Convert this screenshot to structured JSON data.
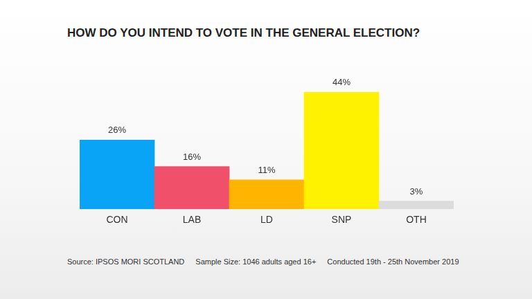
{
  "chart_data": {
    "type": "bar",
    "title": "HOW DO YOU INTEND TO VOTE IN THE GENERAL ELECTION?",
    "categories": [
      "CON",
      "LAB",
      "LD",
      "SNP",
      "OTH"
    ],
    "values": [
      26,
      16,
      11,
      44,
      3
    ],
    "value_labels": [
      "26%",
      "16%",
      "11%",
      "44%",
      "3%"
    ],
    "colors": [
      "#0aa4f6",
      "#f0506a",
      "#ffb400",
      "#fff200",
      "#dcdcdc"
    ],
    "ylim": [
      0,
      44
    ],
    "grid": false,
    "data_labels": true,
    "tick_labels": "x",
    "source": "Source: IPSOS MORI SCOTLAND",
    "annotations": [
      "Sample Size: 1046 adults aged 16+",
      "Conducted 19th - 25th November 2019"
    ]
  }
}
